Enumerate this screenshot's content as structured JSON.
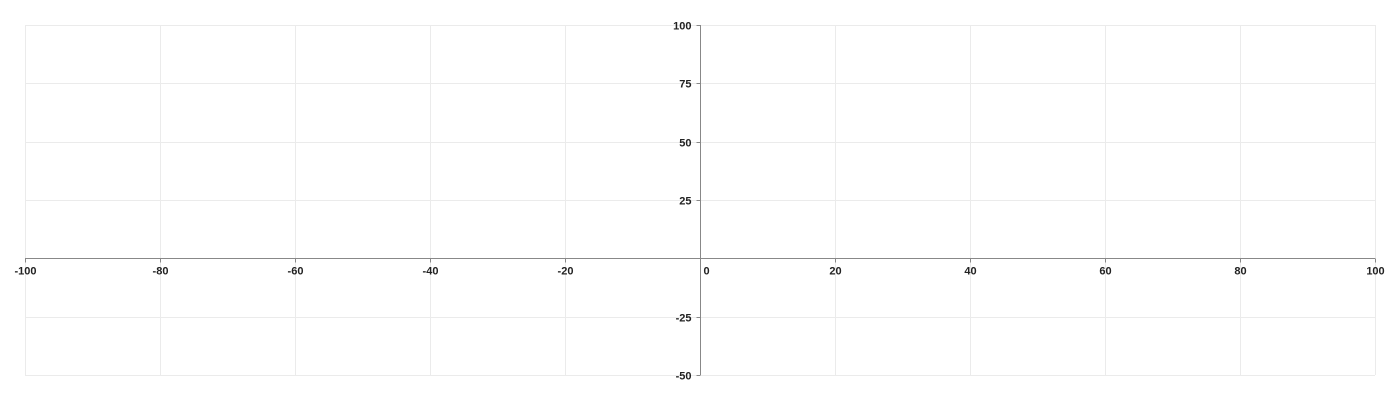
{
  "chart_data": {
    "type": "scatter",
    "title": "",
    "xlabel": "",
    "ylabel": "",
    "xlim": [
      -100,
      100
    ],
    "ylim": [
      -50,
      100
    ],
    "x_ticks": [
      -100,
      -80,
      -60,
      -40,
      -20,
      0,
      20,
      40,
      60,
      80,
      100
    ],
    "y_ticks": [
      -50,
      -25,
      25,
      50,
      75,
      100
    ],
    "grid": true,
    "legend": "none",
    "series": [],
    "colors": {
      "grid": "#ebebeb",
      "axis": "#888888",
      "label": "#222222"
    }
  }
}
